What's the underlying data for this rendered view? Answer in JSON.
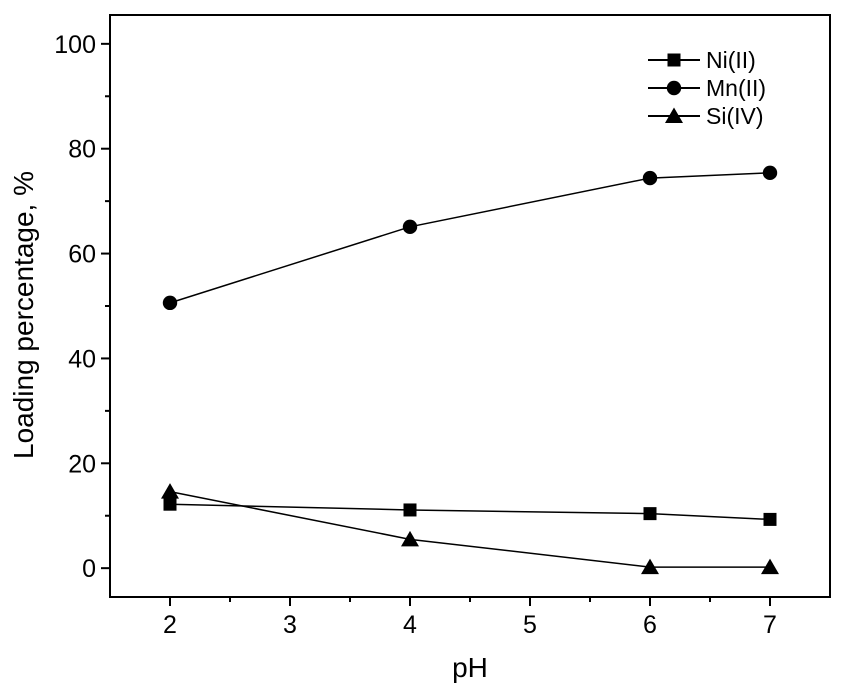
{
  "chart_data": {
    "type": "line",
    "title": "",
    "xlabel": "pH",
    "ylabel": "Loading percentage, %",
    "x": [
      2,
      4,
      6,
      7
    ],
    "series": [
      {
        "name": "Ni(II)",
        "marker": "square",
        "values": [
          12.2,
          11.1,
          10.4,
          9.3
        ]
      },
      {
        "name": "Mn(II)",
        "marker": "circle",
        "values": [
          50.6,
          65.1,
          74.4,
          75.4
        ]
      },
      {
        "name": "Si(IV)",
        "marker": "triangle",
        "values": [
          14.6,
          5.5,
          0.2,
          0.2
        ]
      }
    ],
    "xlim": [
      1.5,
      7.5
    ],
    "ylim": [
      -5.5,
      105.5
    ],
    "x_major_ticks": [
      2,
      3,
      4,
      5,
      6,
      7
    ],
    "x_minor_ticks": [
      2.5,
      3.5,
      4.5,
      5.5,
      6.5
    ],
    "y_major_ticks": [
      0,
      20,
      40,
      60,
      80,
      100
    ],
    "y_minor_ticks": [
      10,
      30,
      50,
      70,
      90
    ],
    "grid": false,
    "legend_position": "top-right",
    "colors": {
      "foreground": "#000000",
      "background": "#ffffff"
    }
  }
}
